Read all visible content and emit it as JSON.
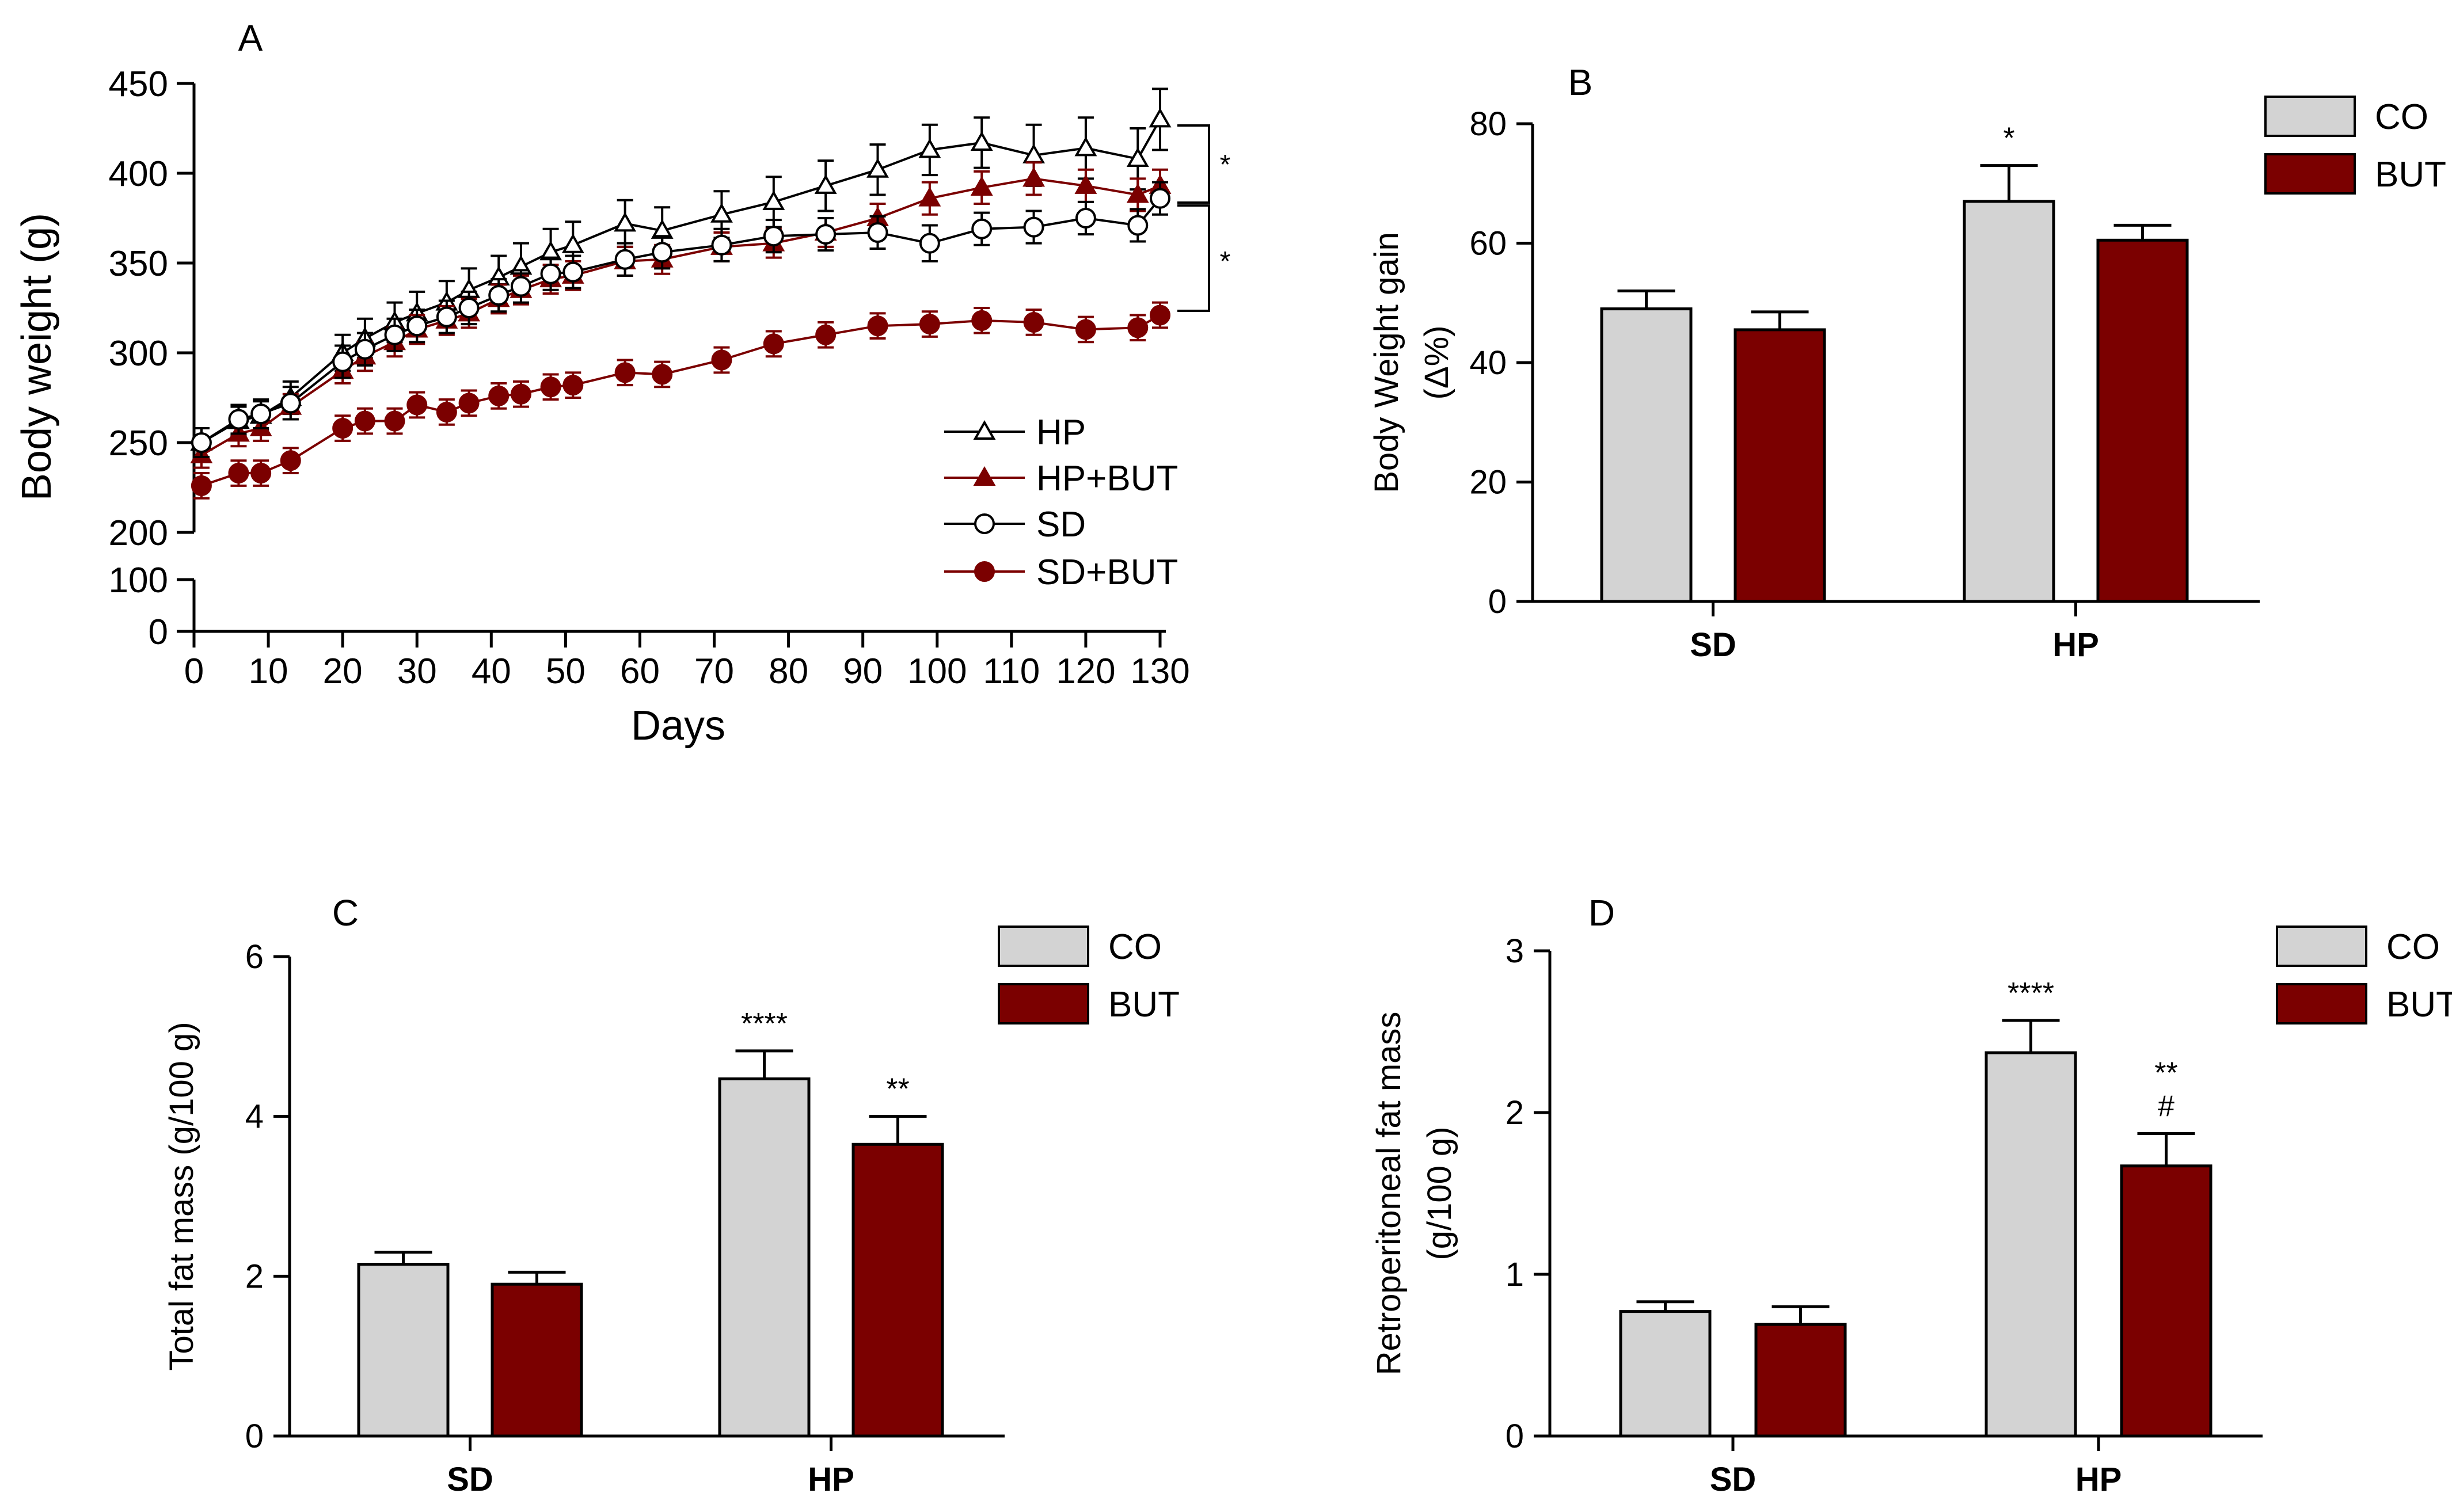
{
  "colors": {
    "co": "#d3d3d3",
    "but": "#7b0000",
    "black": "#000000"
  },
  "chart_data": [
    {
      "panel": "A",
      "type": "line",
      "xlabel": "Days",
      "ylabel": "Body weight (g)",
      "x_ticks": [
        0,
        10,
        20,
        30,
        40,
        50,
        60,
        70,
        80,
        90,
        100,
        110,
        120,
        130
      ],
      "y_ticks_upper": [
        200,
        250,
        300,
        350,
        400,
        450
      ],
      "y_ticks_lower": [
        0,
        100
      ],
      "ylim_upper": [
        200,
        450
      ],
      "ylim_lower": [
        0,
        100
      ],
      "x": [
        1,
        6,
        9,
        13,
        20,
        23,
        27,
        30,
        34,
        37,
        41,
        44,
        48,
        51,
        58,
        63,
        71,
        78,
        85,
        92,
        99,
        106,
        113,
        120,
        127,
        130
      ],
      "series": [
        {
          "name": "HP",
          "marker": "open-triangle",
          "values": [
            250,
            262,
            265,
            275,
            300,
            308,
            317,
            322,
            328,
            335,
            342,
            348,
            356,
            360,
            372,
            368,
            377,
            384,
            393,
            402,
            413,
            417,
            410,
            414,
            408,
            430
          ],
          "errors": [
            8,
            8,
            8,
            9,
            10,
            11,
            11,
            12,
            12,
            12,
            12,
            13,
            13,
            13,
            13,
            13,
            13,
            14,
            14,
            14,
            14,
            14,
            17,
            17,
            17,
            17
          ]
        },
        {
          "name": "HP+BUT",
          "marker": "filled-triangle",
          "values": [
            243,
            255,
            258,
            270,
            290,
            298,
            306,
            313,
            318,
            322,
            330,
            335,
            341,
            343,
            351,
            352,
            359,
            361,
            367,
            375,
            386,
            392,
            397,
            393,
            388,
            393
          ],
          "errors": [
            7,
            7,
            7,
            7,
            7,
            8,
            8,
            8,
            8,
            8,
            8,
            8,
            8,
            8,
            8,
            8,
            8,
            8,
            8,
            8,
            9,
            9,
            9,
            9,
            9,
            9
          ]
        },
        {
          "name": "SD",
          "marker": "open-circle",
          "values": [
            250,
            263,
            266,
            272,
            295,
            302,
            310,
            315,
            320,
            325,
            332,
            337,
            344,
            345,
            352,
            356,
            360,
            365,
            366,
            367,
            361,
            369,
            370,
            375,
            371,
            386
          ],
          "errors": [
            8,
            8,
            8,
            9,
            9,
            9,
            9,
            9,
            9,
            9,
            9,
            9,
            9,
            9,
            9,
            9,
            9,
            9,
            9,
            9,
            10,
            9,
            9,
            9,
            9,
            9
          ]
        },
        {
          "name": "SD+BUT",
          "marker": "filled-circle",
          "values": [
            226,
            233,
            233,
            240,
            258,
            262,
            262,
            271,
            267,
            272,
            276,
            277,
            281,
            282,
            289,
            288,
            296,
            305,
            310,
            315,
            316,
            318,
            317,
            313,
            314,
            321
          ],
          "errors": [
            7,
            7,
            7,
            7,
            7,
            7,
            7,
            7,
            7,
            7,
            7,
            7,
            7,
            7,
            7,
            7,
            7,
            7,
            7,
            7,
            7,
            7,
            7,
            7,
            7,
            7
          ]
        }
      ],
      "annotations": [
        "*",
        "*"
      ]
    },
    {
      "panel": "B",
      "type": "bar",
      "ylabel_line1": "Body Weight gain",
      "ylabel_line2": "(Δ%)",
      "categories": [
        "SD",
        "HP"
      ],
      "y_ticks": [
        0,
        20,
        40,
        60,
        80
      ],
      "ylim": [
        0,
        80
      ],
      "series": [
        {
          "name": "CO",
          "values": [
            49,
            67
          ],
          "errors": [
            3,
            6
          ],
          "labels": [
            "",
            "*"
          ]
        },
        {
          "name": "BUT",
          "values": [
            45.5,
            60.5
          ],
          "errors": [
            3,
            2.5
          ],
          "labels": [
            "",
            ""
          ]
        }
      ]
    },
    {
      "panel": "C",
      "type": "bar",
      "ylabel_line1": "Total fat mass (g/100 g)",
      "ylabel_line2": "",
      "categories": [
        "SD",
        "HP"
      ],
      "y_ticks": [
        0,
        2,
        4,
        6
      ],
      "ylim": [
        0,
        6
      ],
      "series": [
        {
          "name": "CO",
          "values": [
            2.15,
            4.47
          ],
          "errors": [
            0.15,
            0.35
          ],
          "labels": [
            "",
            "****"
          ]
        },
        {
          "name": "BUT",
          "values": [
            1.9,
            3.65
          ],
          "errors": [
            0.15,
            0.35
          ],
          "labels": [
            "",
            "**"
          ]
        }
      ]
    },
    {
      "panel": "D",
      "type": "bar",
      "ylabel_line1": "Retroperitoneal fat mass",
      "ylabel_line2": "(g/100 g)",
      "categories": [
        "SD",
        "HP"
      ],
      "y_ticks": [
        0,
        1,
        2,
        3
      ],
      "ylim": [
        0,
        3
      ],
      "series": [
        {
          "name": "CO",
          "values": [
            0.77,
            2.37
          ],
          "errors": [
            0.06,
            0.2
          ],
          "labels": [
            "",
            "****"
          ]
        },
        {
          "name": "BUT",
          "values": [
            0.69,
            1.67
          ],
          "errors": [
            0.11,
            0.2
          ],
          "labels": [
            "",
            "**\n#"
          ]
        }
      ]
    }
  ]
}
